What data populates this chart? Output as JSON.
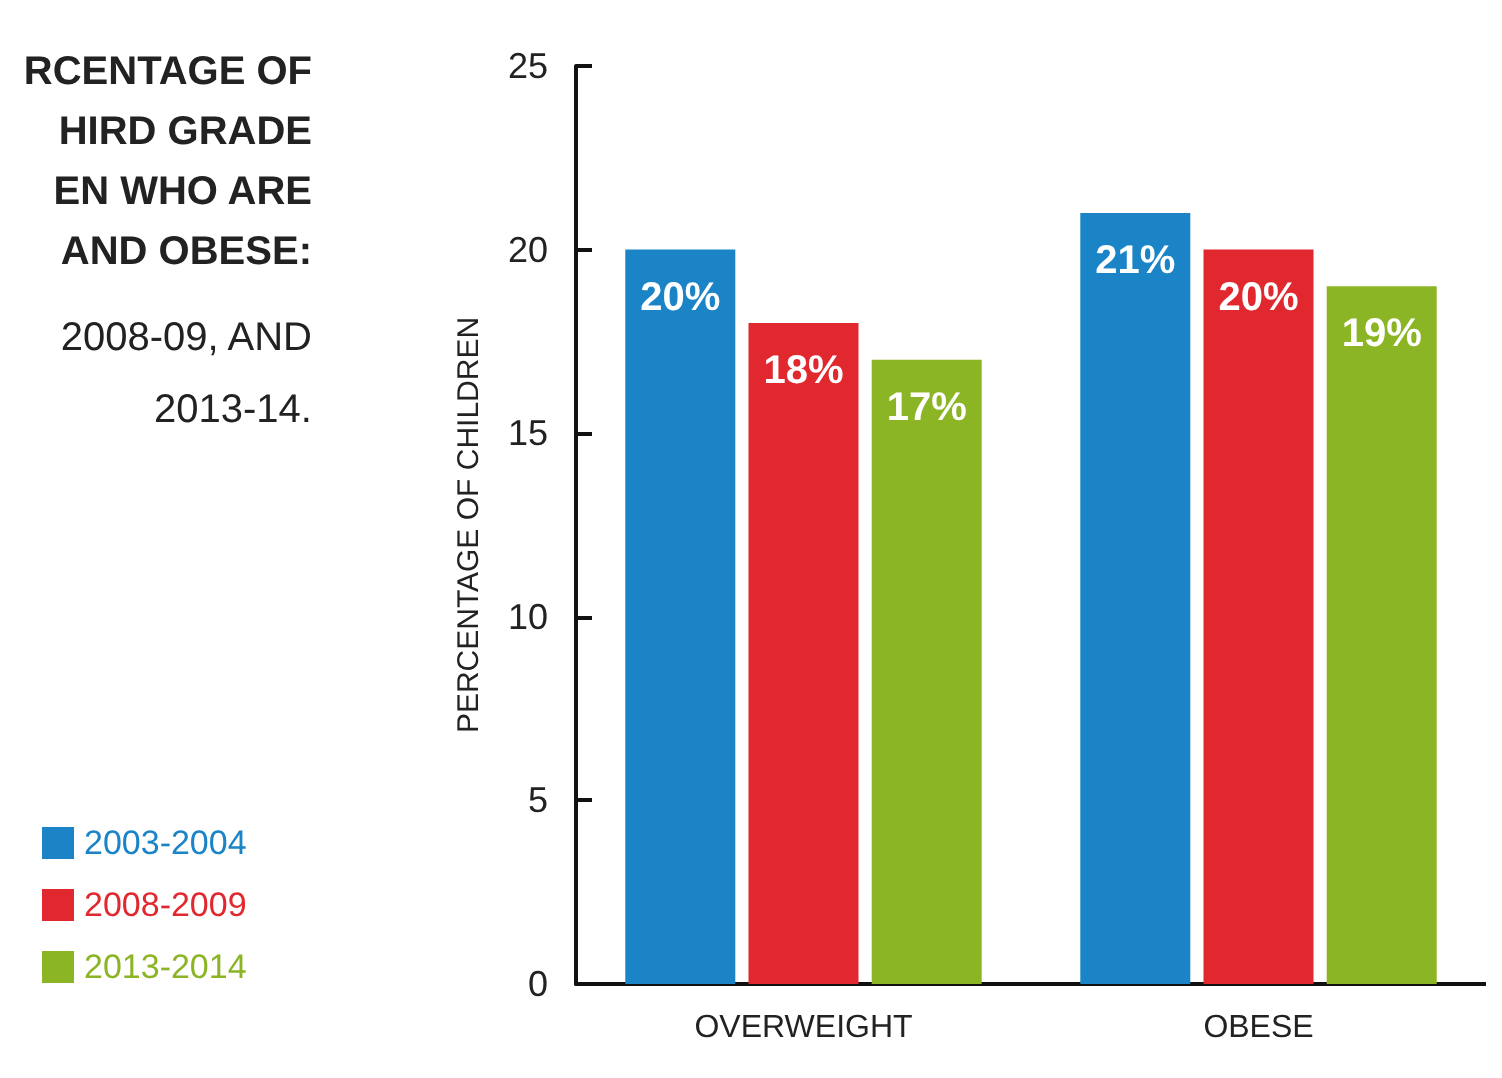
{
  "chart_data": {
    "type": "bar",
    "title": "RCENTAGE OF\nHIRD GRADE\nEN WHO ARE\nAND OBESE:",
    "subtitle": "2008-09, AND\n2013-14.",
    "ylabel": "PERCENTAGE OF CHILDREN",
    "categories": [
      "OVERWEIGHT",
      "OBESE"
    ],
    "series": [
      {
        "name": "2003-2004",
        "color": "#1a84c7",
        "values": [
          20,
          21
        ],
        "value_labels": [
          "20%",
          "21%"
        ]
      },
      {
        "name": "2008-2009",
        "color": "#e0282e",
        "values": [
          18,
          20
        ],
        "value_labels": [
          "18%",
          "20%"
        ]
      },
      {
        "name": "2013-2014",
        "color": "#8cb526",
        "values": [
          17,
          19
        ],
        "value_labels": [
          "17%",
          "19%"
        ]
      }
    ],
    "ylim": [
      0,
      25
    ],
    "yticks": [
      0,
      5,
      10,
      15,
      20,
      25
    ],
    "grid": false,
    "legend": "left"
  }
}
